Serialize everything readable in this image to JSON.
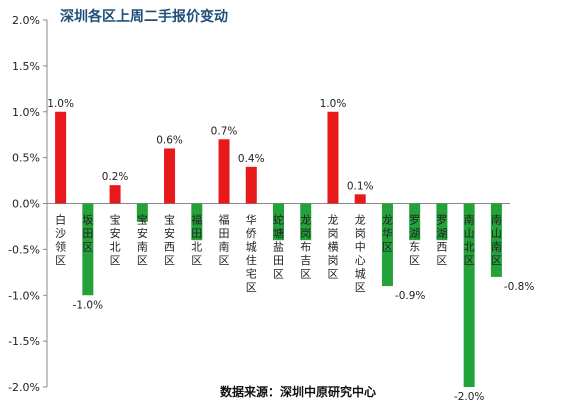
{
  "chart_data": {
    "type": "bar",
    "title": "深圳各区上周二手报价变动",
    "source": "数据来源：深圳中原研究中心",
    "categories": [
      "白沙领区",
      "坂田区",
      "宝安北区",
      "宝安南区",
      "宝安西区",
      "福田北区",
      "福田南区",
      "华侨城住宅区",
      "蛇塘盐田区",
      "龙岗布吉区",
      "龙岗横岗区",
      "龙岗中心城区",
      "龙华区",
      "罗湖东区",
      "罗湖西区",
      "南山北区",
      "南山南区"
    ],
    "values": [
      1.0,
      -1.0,
      0.2,
      -0.2,
      0.6,
      -0.4,
      0.7,
      0.4,
      -0.4,
      -0.4,
      1.0,
      0.1,
      -0.9,
      -0.4,
      -0.4,
      -2.0,
      -0.8
    ],
    "labels": [
      "1.0%",
      "-1.0%",
      "0.2%",
      "",
      "0.6%",
      "",
      "0.7%",
      "0.4%",
      "",
      "",
      "1.0%",
      "0.1%",
      "-0.9%",
      "",
      "",
      "-2.0%",
      "-0.8%"
    ],
    "ylim": [
      -2.0,
      2.0
    ],
    "yticks": [
      "2.0%",
      "1.5%",
      "1.0%",
      "0.5%",
      "0.0%",
      "-0.5%",
      "-1.0%",
      "-1.5%",
      "-2.0%"
    ],
    "ytick_values": [
      2.0,
      1.5,
      1.0,
      0.5,
      0.0,
      -0.5,
      -1.0,
      -1.5,
      -2.0
    ],
    "xlabel": "",
    "ylabel": "",
    "grid": false,
    "colors": {
      "positive": "#e8191a",
      "negative": "#23a23a",
      "axis": "#888888"
    }
  }
}
